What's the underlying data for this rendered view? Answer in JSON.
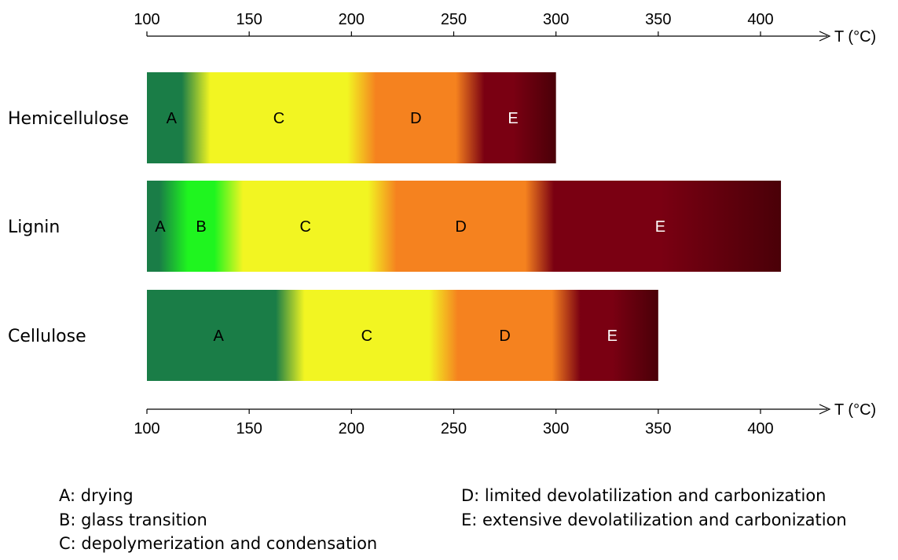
{
  "chart_data": {
    "type": "bar",
    "axis": {
      "label": "T (°C)",
      "min": 100,
      "max": 400,
      "ticks": [
        100,
        150,
        200,
        250,
        300,
        350,
        400
      ]
    },
    "rows": [
      {
        "name": "Hemicellulose",
        "segments": [
          {
            "label": "A",
            "start": 100,
            "end": 124
          },
          {
            "label": "C",
            "start": 124,
            "end": 205
          },
          {
            "label": "D",
            "start": 205,
            "end": 258
          },
          {
            "label": "E",
            "start": 258,
            "end": 300
          }
        ]
      },
      {
        "name": "Lignin",
        "segments": [
          {
            "label": "A",
            "start": 100,
            "end": 113
          },
          {
            "label": "B",
            "start": 113,
            "end": 140
          },
          {
            "label": "C",
            "start": 140,
            "end": 215
          },
          {
            "label": "D",
            "start": 215,
            "end": 292
          },
          {
            "label": "E",
            "start": 292,
            "end": 410
          }
        ]
      },
      {
        "name": "Cellulose",
        "segments": [
          {
            "label": "A",
            "start": 100,
            "end": 170
          },
          {
            "label": "C",
            "start": 170,
            "end": 245
          },
          {
            "label": "D",
            "start": 245,
            "end": 305
          },
          {
            "label": "E",
            "start": 305,
            "end": 350
          }
        ]
      }
    ]
  },
  "colors": {
    "A": "#1a7d47",
    "B": "#1ff51f",
    "C": "#f2f522",
    "D": "#f5821f",
    "E": "#7a0012",
    "E_dark": "#4a0008"
  },
  "legend": {
    "A": "A: drying",
    "B": "B: glass transition",
    "C": "C: depolymerization and condensation",
    "D": "D: limited devolatilization and carbonization",
    "E": "E: extensive devolatilization and carbonization"
  }
}
